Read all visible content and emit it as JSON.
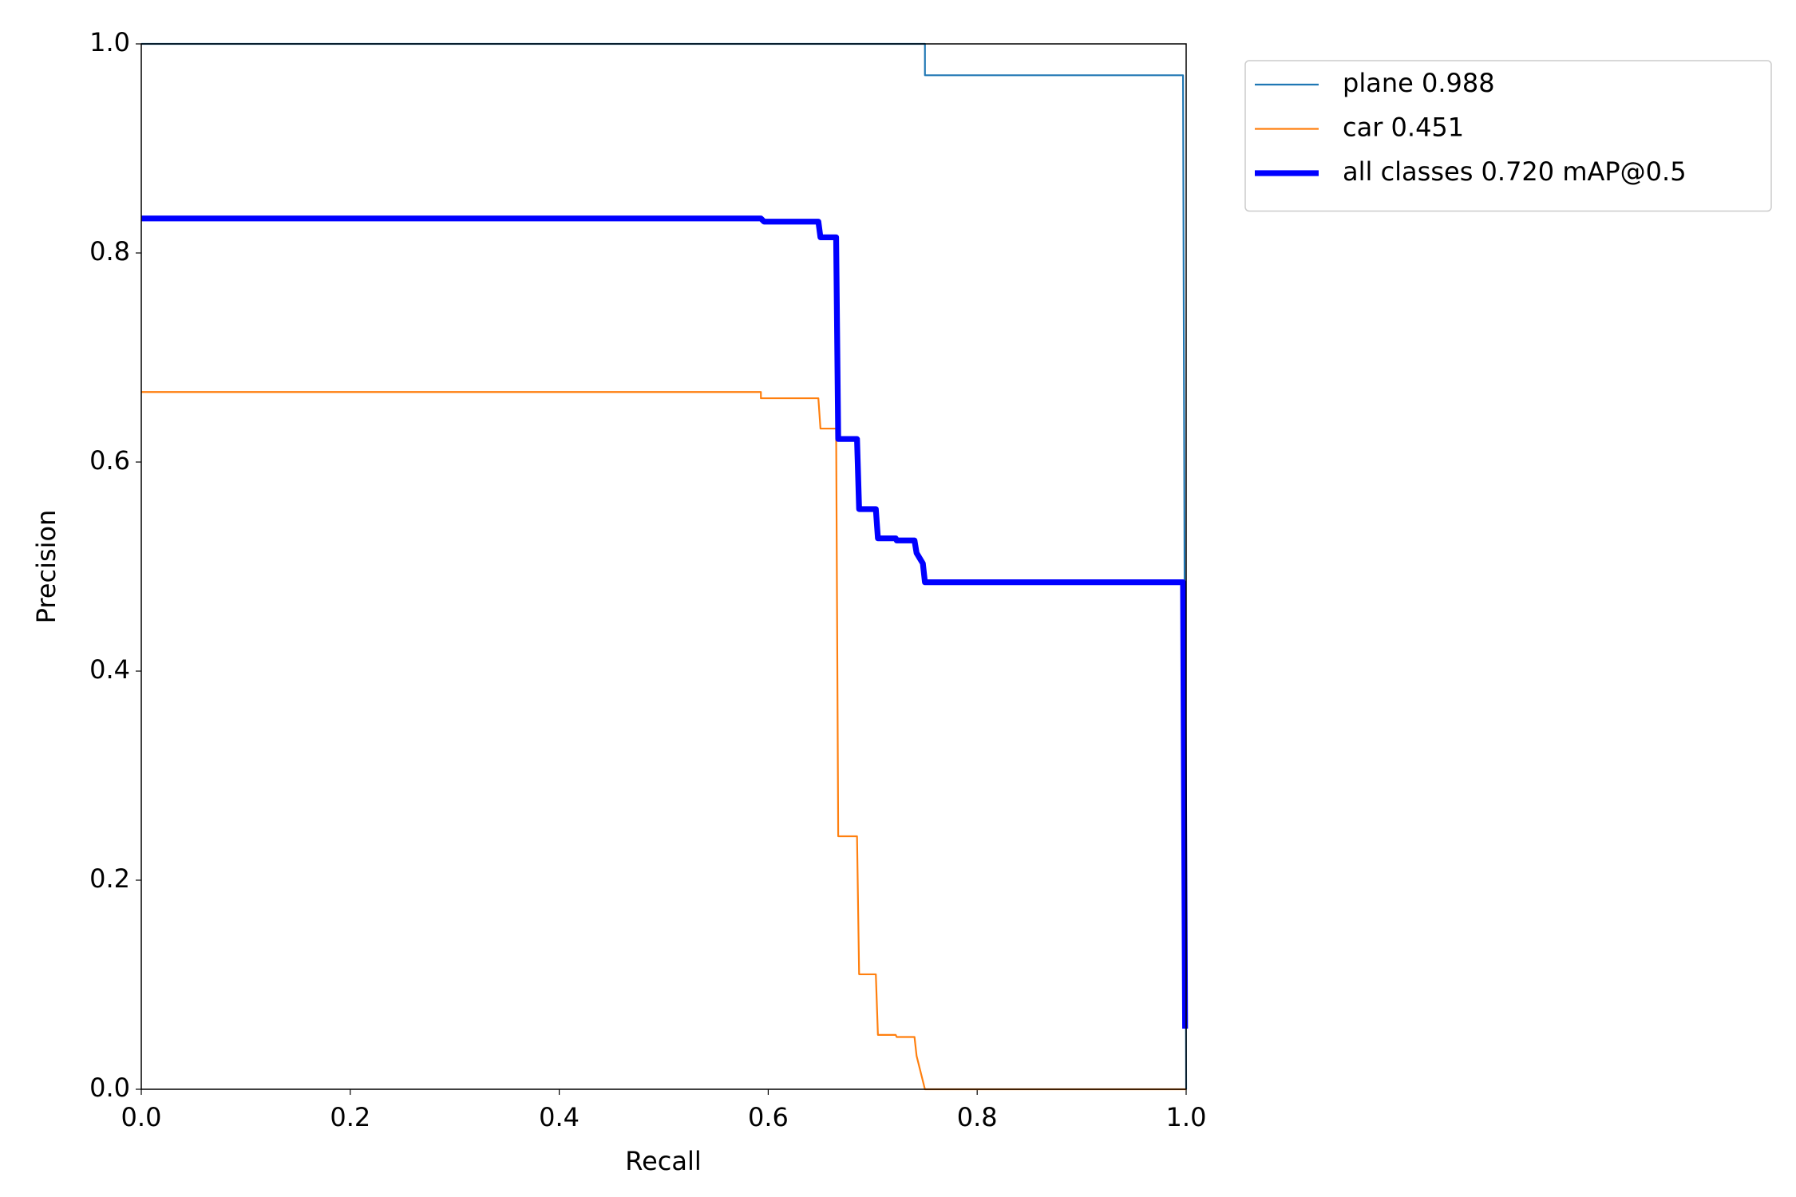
{
  "chart_data": {
    "type": "line",
    "xlabel": "Recall",
    "ylabel": "Precision",
    "xlim": [
      0,
      1
    ],
    "ylim": [
      0,
      1
    ],
    "xticks": [
      {
        "value": 0,
        "label": "0.0"
      },
      0.2,
      0.4,
      0.6,
      0.8,
      {
        "value": 1,
        "label": "1.0"
      }
    ],
    "yticks": [
      {
        "value": 0,
        "label": "0.0"
      },
      0.2,
      0.4,
      0.6,
      0.8,
      {
        "value": 1,
        "label": "1.0"
      }
    ],
    "legend": "outside upper right",
    "series": [
      {
        "name": "plane 0.988",
        "color": "#1f77b4",
        "width": 1.5,
        "x": [
          0,
          0.75,
          0.75,
          0.997,
          1.0
        ],
        "values": [
          1.0,
          1.0,
          0.97,
          0.97,
          0.0
        ]
      },
      {
        "name": "car 0.451",
        "color": "#ff7f0e",
        "width": 1.5,
        "x": [
          0,
          0.593,
          0.593,
          0.648,
          0.65,
          0.665,
          0.667,
          0.685,
          0.687,
          0.703,
          0.705,
          0.722,
          0.723,
          0.74,
          0.742,
          0.75,
          1.0
        ],
        "values": [
          0.667,
          0.667,
          0.661,
          0.661,
          0.632,
          0.632,
          0.242,
          0.242,
          0.11,
          0.11,
          0.052,
          0.052,
          0.05,
          0.05,
          0.032,
          0.0,
          0.0
        ]
      },
      {
        "name": "all classes 0.720 mAP@0.5",
        "color": "#0000ff",
        "width": 5,
        "x": [
          0,
          0.593,
          0.596,
          0.648,
          0.65,
          0.665,
          0.667,
          0.685,
          0.687,
          0.703,
          0.705,
          0.722,
          0.723,
          0.74,
          0.742,
          0.748,
          0.75,
          0.997,
          0.999
        ],
        "values": [
          0.833,
          0.833,
          0.83,
          0.83,
          0.815,
          0.815,
          0.622,
          0.622,
          0.555,
          0.555,
          0.527,
          0.527,
          0.525,
          0.525,
          0.513,
          0.503,
          0.485,
          0.485,
          0.058
        ]
      }
    ]
  }
}
